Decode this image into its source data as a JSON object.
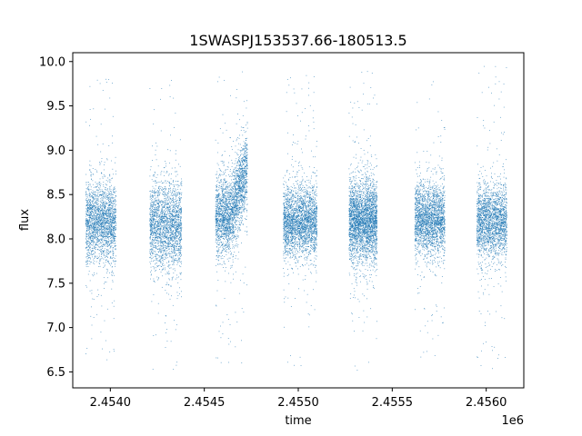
{
  "chart_data": {
    "type": "scatter",
    "title": "1SWASPJ153537.66-180513.5",
    "xlabel": "time",
    "ylabel": "flux",
    "x_offset_label": "1e6",
    "xlim": [
      2453800,
      2456200
    ],
    "ylim": [
      6.32,
      10.1
    ],
    "x_ticks": [
      2454000,
      2454500,
      2455000,
      2455500,
      2456000
    ],
    "x_tick_labels": [
      "2.4540",
      "2.4545",
      "2.4550",
      "2.4555",
      "2.4560"
    ],
    "y_ticks": [
      6.5,
      7.0,
      7.5,
      8.0,
      8.5,
      9.0,
      9.5,
      10.0
    ],
    "y_tick_labels": [
      "6.5",
      "7.0",
      "7.5",
      "8.0",
      "8.5",
      "9.0",
      "9.5",
      "10.0"
    ],
    "grid": false,
    "marker_color": "#1f77b4",
    "seasons": [
      {
        "x_start": 2453870,
        "x_end": 2454030,
        "center": 8.2,
        "spread": 0.22,
        "y_min": 6.55,
        "y_max": 9.85,
        "n": 2200
      },
      {
        "x_start": 2454210,
        "x_end": 2454380,
        "center": 8.15,
        "spread": 0.24,
        "y_min": 6.5,
        "y_max": 9.8,
        "n": 2200
      },
      {
        "x_start": 2454560,
        "x_end": 2454730,
        "center": 8.25,
        "spread": 0.22,
        "y_min": 6.55,
        "y_max": 9.95,
        "n": 2500,
        "rise_start": 2454640,
        "rise_end": 2454730,
        "rise_center": 8.75
      },
      {
        "x_start": 2454920,
        "x_end": 2455100,
        "center": 8.2,
        "spread": 0.2,
        "y_min": 6.55,
        "y_max": 9.85,
        "n": 2600
      },
      {
        "x_start": 2455270,
        "x_end": 2455420,
        "center": 8.2,
        "spread": 0.22,
        "y_min": 6.5,
        "y_max": 9.95,
        "n": 3000
      },
      {
        "x_start": 2455620,
        "x_end": 2455780,
        "center": 8.22,
        "spread": 0.2,
        "y_min": 6.6,
        "y_max": 9.9,
        "n": 2300
      },
      {
        "x_start": 2455950,
        "x_end": 2456110,
        "center": 8.2,
        "spread": 0.21,
        "y_min": 6.5,
        "y_max": 9.95,
        "n": 2200
      }
    ]
  }
}
